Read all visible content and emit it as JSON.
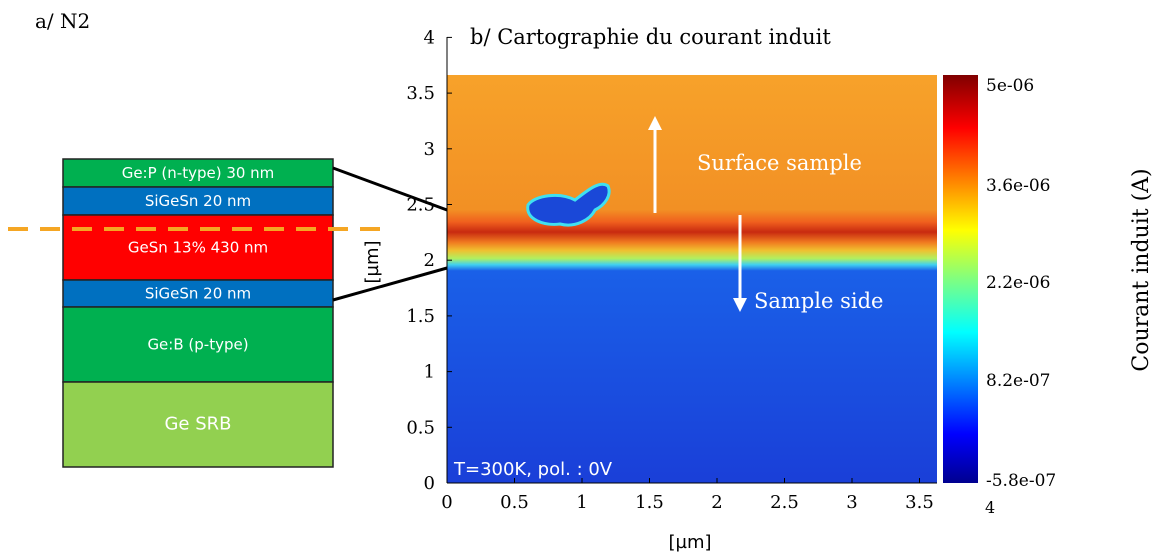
{
  "panel_a": {
    "title": "a/ N2",
    "layers": [
      "Ge:P (n-type) 30 nm",
      "SiGeSn 20 nm",
      "GeSn 13% 430 nm",
      "SiGeSn 20 nm",
      "Ge:B (p-type)",
      "Ge SRB"
    ]
  },
  "panel_b": {
    "title": "b/ Cartographie du courant induit",
    "x_label": "[µm]",
    "y_label": "[µm]",
    "xticks": [
      "0",
      "0.5",
      "1",
      "1.5",
      "2",
      "2.5",
      "3",
      "3.5"
    ],
    "yticks": [
      "0",
      "0.5",
      "1",
      "1.5",
      "2",
      "2.5",
      "3",
      "3.5",
      "4"
    ],
    "colorbar": {
      "label": "Courant induit (A)",
      "ticks": [
        "5e-06",
        "3.6e-06",
        "2.2e-06",
        "8.2e-07",
        "-5.8e-07"
      ],
      "corner_label": "4"
    },
    "annotations": {
      "top": "Surface sample",
      "bottom": "Sample side",
      "conditions": "T=300K, pol. : 0V"
    }
  }
}
